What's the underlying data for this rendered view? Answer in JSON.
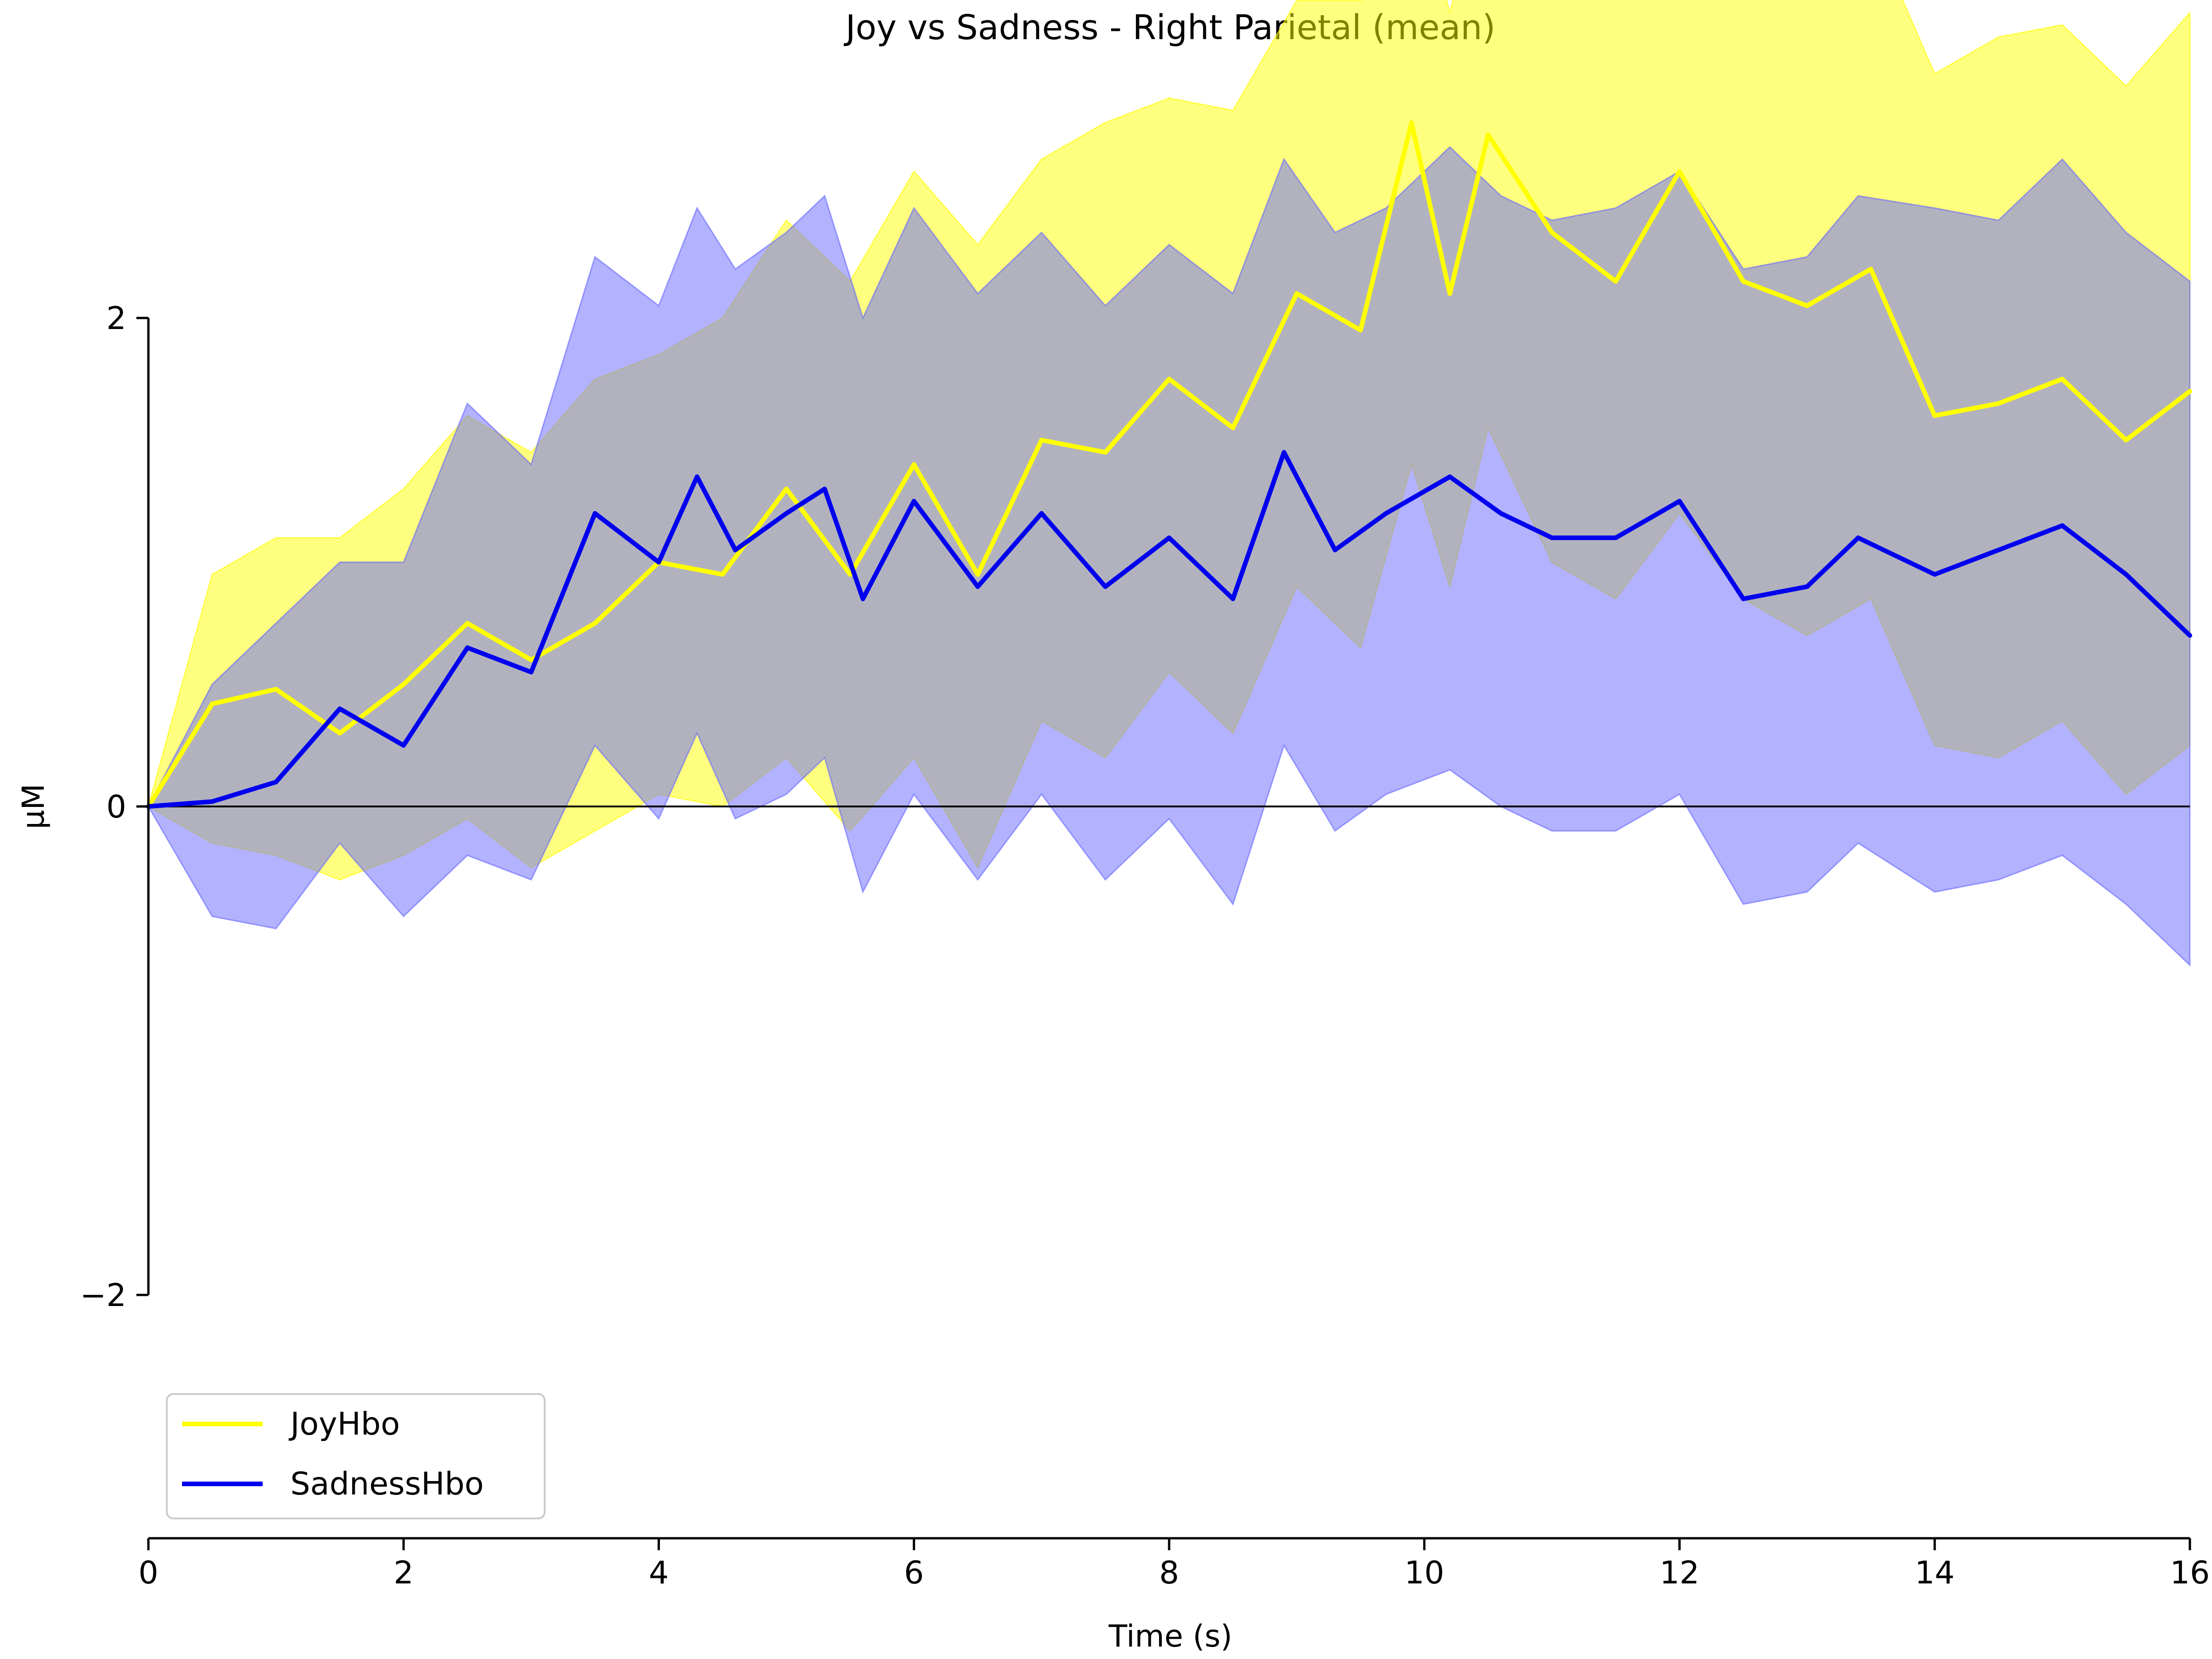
{
  "chart_data": {
    "type": "line",
    "title": "Joy vs Sadness - Right Parietal (mean)",
    "xlabel": "Time (s)",
    "ylabel": "µM",
    "xlim": [
      0,
      16
    ],
    "ylim": [
      -2,
      2
    ],
    "x_ticks": [
      0,
      2,
      4,
      6,
      8,
      10,
      12,
      14,
      16
    ],
    "y_ticks": [
      -2,
      0,
      2
    ],
    "x_tick_labels": [
      "0",
      "2",
      "4",
      "6",
      "8",
      "10",
      "12",
      "14",
      "16"
    ],
    "y_tick_labels": [
      "−2",
      "0",
      "2"
    ],
    "zero_line": true,
    "grid": false,
    "legend_position": "lower-left",
    "series": [
      {
        "name": "JoyHbo",
        "color": "#ffff00",
        "band_color": "#ffff00",
        "x": [
          0,
          0.5,
          1,
          1.5,
          2,
          2.5,
          3,
          3.5,
          4,
          4.5,
          5,
          5.5,
          6,
          6.5,
          7,
          7.5,
          8,
          8.5,
          9,
          9.5,
          9.9,
          10.2,
          10.5,
          11,
          11.5,
          12,
          12.5,
          13,
          13.5,
          14,
          14.5,
          15,
          15.5,
          16
        ],
        "values": [
          0.0,
          0.42,
          0.48,
          0.3,
          0.5,
          0.75,
          0.6,
          0.75,
          1.0,
          0.95,
          1.3,
          0.95,
          1.4,
          0.95,
          1.5,
          1.45,
          1.75,
          1.55,
          2.1,
          1.95,
          2.8,
          2.1,
          2.75,
          2.35,
          2.15,
          2.6,
          2.15,
          2.05,
          2.2,
          1.6,
          1.65,
          1.75,
          1.5,
          1.7
        ],
        "upper": [
          0.0,
          0.95,
          1.1,
          1.1,
          1.3,
          1.6,
          1.45,
          1.75,
          1.85,
          2.0,
          2.4,
          2.15,
          2.6,
          2.3,
          2.65,
          2.8,
          2.9,
          2.85,
          3.3,
          3.3,
          3.85,
          3.25,
          3.9,
          3.85,
          3.5,
          3.9,
          3.5,
          3.55,
          3.6,
          3.0,
          3.15,
          3.2,
          2.95,
          3.25
        ],
        "lower": [
          0.0,
          -0.15,
          -0.2,
          -0.3,
          -0.2,
          -0.05,
          -0.25,
          -0.1,
          0.05,
          0.0,
          0.2,
          -0.1,
          0.2,
          -0.25,
          0.35,
          0.2,
          0.55,
          0.3,
          0.9,
          0.65,
          1.4,
          0.9,
          1.55,
          1.0,
          0.85,
          1.2,
          0.85,
          0.7,
          0.85,
          0.25,
          0.2,
          0.35,
          0.05,
          0.25
        ]
      },
      {
        "name": "SadnessHbo",
        "color": "#0000ee",
        "band_color": "#6666ff",
        "x": [
          0,
          0.5,
          1,
          1.5,
          2,
          2.5,
          3,
          3.5,
          4,
          4.3,
          4.6,
          5,
          5.3,
          5.6,
          6,
          6.5,
          7,
          7.5,
          8,
          8.5,
          8.9,
          9.3,
          9.7,
          10.2,
          10.6,
          11,
          11.5,
          12,
          12.5,
          13,
          13.4,
          14,
          14.5,
          15,
          15.5,
          16
        ],
        "values": [
          0.0,
          0.02,
          0.1,
          0.4,
          0.25,
          0.65,
          0.55,
          1.2,
          1.0,
          1.35,
          1.05,
          1.2,
          1.3,
          0.85,
          1.25,
          0.9,
          1.2,
          0.9,
          1.1,
          0.85,
          1.45,
          1.05,
          1.2,
          1.35,
          1.2,
          1.1,
          1.1,
          1.25,
          0.85,
          0.9,
          1.1,
          0.95,
          1.05,
          1.15,
          0.95,
          0.7
        ],
        "upper": [
          0.0,
          0.5,
          0.75,
          1.0,
          1.0,
          1.65,
          1.4,
          2.25,
          2.05,
          2.45,
          2.2,
          2.35,
          2.5,
          2.0,
          2.45,
          2.1,
          2.35,
          2.05,
          2.3,
          2.1,
          2.65,
          2.35,
          2.45,
          2.7,
          2.5,
          2.4,
          2.45,
          2.6,
          2.2,
          2.25,
          2.5,
          2.45,
          2.4,
          2.65,
          2.35,
          2.15
        ],
        "lower": [
          0.0,
          -0.45,
          -0.5,
          -0.15,
          -0.45,
          -0.2,
          -0.3,
          0.25,
          -0.05,
          0.3,
          -0.05,
          0.05,
          0.2,
          -0.35,
          0.05,
          -0.3,
          0.05,
          -0.3,
          -0.05,
          -0.4,
          0.25,
          -0.1,
          0.05,
          0.15,
          0.0,
          -0.1,
          -0.1,
          0.05,
          -0.4,
          -0.35,
          -0.15,
          -0.35,
          -0.3,
          -0.2,
          -0.4,
          -0.65
        ]
      }
    ]
  }
}
